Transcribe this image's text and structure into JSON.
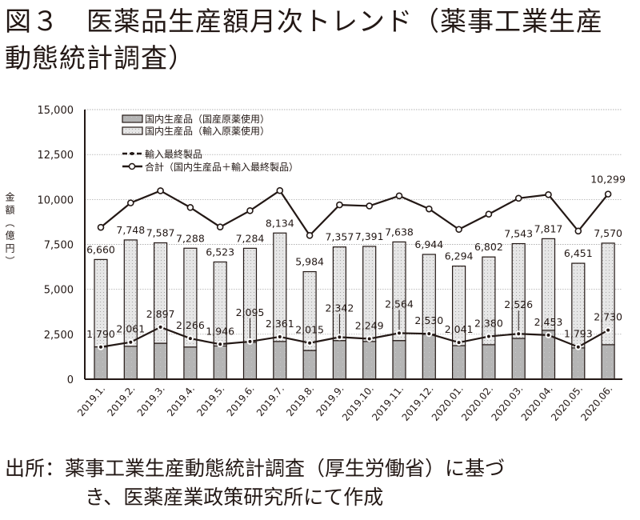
{
  "title": {
    "line1": "図３　医薬品生産額月次トレンド（薬事工業生産",
    "line2": "動態統計調査）"
  },
  "footer": {
    "line1": "出所：薬事工業生産動態統計調査（厚生労働省）に基づ",
    "line2": "き、医薬産業政策研究所にて作成"
  },
  "chart_data": {
    "type": "bar",
    "stacked": true,
    "ylabel": "金額（億円）",
    "xlabel": "",
    "ylim": [
      0,
      15000
    ],
    "yticks": [
      "0",
      "2,500",
      "5,000",
      "7,500",
      "10,000",
      "12,500",
      "15,000"
    ],
    "grid": true,
    "legend_position": "top-left",
    "colors": {
      "domestic_raw": "#b5b5b5",
      "import_raw": "#e3e3e3",
      "line": "#231815"
    },
    "categories": [
      "2019.1.",
      "2019.2.",
      "2019.3.",
      "2019.4.",
      "2019.5.",
      "2019.6.",
      "2019.7.",
      "2019.8.",
      "2019.9.",
      "2019.10.",
      "2019.11.",
      "2019.12.",
      "2020.01.",
      "2020.02.",
      "2020.03.",
      "2020.04.",
      "2020.05.",
      "2020.06."
    ],
    "bar_series": [
      {
        "name": "国内生産品（国産原薬使用）",
        "values": [
          1800,
          1830,
          2000,
          1790,
          1850,
          2050,
          2100,
          1600,
          2150,
          2100,
          2150,
          2500,
          1870,
          1920,
          2270,
          2720,
          1740,
          1920
        ]
      },
      {
        "name": "国内生産品（輸入原薬使用）",
        "values": [
          4860,
          5918,
          5587,
          5498,
          4673,
          5234,
          6034,
          4384,
          5207,
          5291,
          5488,
          4444,
          4424,
          4882,
          5273,
          5097,
          4711,
          5650
        ]
      }
    ],
    "bar_totals": [
      6660,
      7748,
      7587,
      7288,
      6523,
      7284,
      8134,
      5984,
      7357,
      7391,
      7638,
      6944,
      6294,
      6802,
      7543,
      7817,
      6451,
      7570
    ],
    "bar_total_labels": [
      "6,660",
      "7,748",
      "7,587",
      "7,288",
      "6,523",
      "7,284",
      "8,134",
      "5,984",
      "7,357",
      "7,391",
      "7,638",
      "6,944",
      "6,294",
      "6,802",
      "7,543",
      "7,817",
      "6,451",
      "7,570"
    ],
    "line_series": [
      {
        "name": "輸入最終製品",
        "values": [
          1790,
          2061,
          2897,
          2266,
          1946,
          2095,
          2361,
          2015,
          2342,
          2249,
          2564,
          2530,
          2041,
          2380,
          2526,
          2453,
          1793,
          2730
        ],
        "labels": [
          "1,790",
          "2,061",
          "2,897",
          "2,266",
          "1,946",
          "2,095",
          "2,361",
          "2,015",
          "2,342",
          "2,249",
          "2,564",
          "2,530",
          "2,041",
          "2,380",
          "2,526",
          "2,453",
          "1,793",
          "2,730"
        ]
      },
      {
        "name": "合計（国内生産品＋輸入最終製品）",
        "values": [
          8450,
          9809,
          10484,
          9554,
          8469,
          9379,
          10495,
          7999,
          9699,
          9640,
          10202,
          9474,
          8335,
          9182,
          10069,
          10270,
          8244,
          10299
        ],
        "labels": [
          "",
          "",
          "",
          "",
          "",
          "",
          "",
          "",
          "",
          "",
          "",
          "",
          "",
          "",
          "",
          "",
          "",
          "10,299"
        ]
      }
    ]
  }
}
